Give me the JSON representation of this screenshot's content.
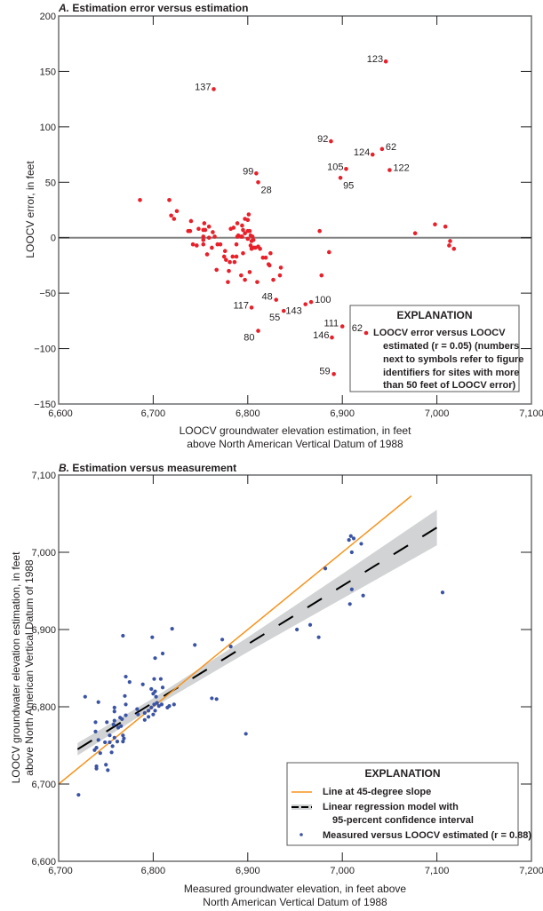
{
  "chart_data": [
    {
      "type": "scatter",
      "panel_letter": "A.",
      "title": "Estimation error versus estimation",
      "xlabel": [
        "LOOCV groundwater elevation estimation, in feet",
        "above North American Vertical Datum of 1988"
      ],
      "ylabel": "LOOCV  error, in feet",
      "xlim": [
        6600,
        7100
      ],
      "ylim": [
        -150,
        200
      ],
      "xticks": [
        6600,
        6700,
        6800,
        6900,
        7000,
        7100
      ],
      "xtick_labels": [
        "6,600",
        "6,700",
        "6,800",
        "6,900",
        "7,000",
        "7,100"
      ],
      "yticks": [
        -150,
        -100,
        -50,
        0,
        50,
        100,
        150,
        200
      ],
      "ytick_labels": [
        "−150",
        "−100",
        "−50",
        "0",
        "50",
        "100",
        "150",
        "200"
      ],
      "reference_line_y": 0,
      "grid": false,
      "colors": {
        "points": "#e8202a",
        "reference": "#808080"
      },
      "legend": {
        "placement": "bottom-right",
        "heading": "EXPLANATION",
        "sample_label": "62",
        "lines": [
          "LOOCV error versus LOOCV",
          "estimated (r = 0.05) (numbers",
          "next to symbols refer to figure",
          "identifiers for sites with more",
          "than 50 feet of LOOCV error)"
        ]
      },
      "points": [
        [
          6686,
          34
        ],
        [
          6717,
          34
        ],
        [
          6719,
          20
        ],
        [
          6722,
          17
        ],
        [
          6725,
          24
        ],
        [
          6740,
          15
        ],
        [
          6737,
          6
        ],
        [
          6739,
          6
        ],
        [
          6748,
          8
        ],
        [
          6754,
          13
        ],
        [
          6759,
          10
        ],
        [
          6753,
          7
        ],
        [
          6755,
          7
        ],
        [
          6763,
          5
        ],
        [
          6753,
          1
        ],
        [
          6759,
          0
        ],
        [
          6765,
          1
        ],
        [
          6753,
          -2
        ],
        [
          6742,
          -6
        ],
        [
          6746,
          -7
        ],
        [
          6753,
          -6
        ],
        [
          6762,
          -9
        ],
        [
          6768,
          -6
        ],
        [
          6771,
          -6
        ],
        [
          6757,
          -15
        ],
        [
          6776,
          -12
        ],
        [
          6775,
          -17
        ],
        [
          6777,
          -20
        ],
        [
          6781,
          -22
        ],
        [
          6784,
          -17
        ],
        [
          6788,
          -17
        ],
        [
          6786,
          -22
        ],
        [
          6767,
          -29
        ],
        [
          6780,
          -30
        ],
        [
          6779,
          -40
        ],
        [
          6788,
          -6
        ],
        [
          6795,
          -14
        ],
        [
          6793,
          -34
        ],
        [
          6797,
          -38
        ],
        [
          6802,
          -31
        ],
        [
          6810,
          -40
        ],
        [
          6782,
          8
        ],
        [
          6785,
          9
        ],
        [
          6789,
          13
        ],
        [
          6794,
          11
        ],
        [
          6797,
          17
        ],
        [
          6800,
          16
        ],
        [
          6801,
          21
        ],
        [
          6795,
          7
        ],
        [
          6800,
          6
        ],
        [
          6802,
          6
        ],
        [
          6790,
          2
        ],
        [
          6793,
          1
        ],
        [
          6797,
          4
        ],
        [
          6803,
          2
        ],
        [
          6805,
          1
        ],
        [
          6789,
          1
        ],
        [
          6794,
          1
        ],
        [
          6800,
          -1
        ],
        [
          6804,
          -3
        ],
        [
          6806,
          -2
        ],
        [
          6803,
          -7
        ],
        [
          6806,
          -9
        ],
        [
          6808,
          -9
        ],
        [
          6804,
          -10
        ],
        [
          6811,
          -8
        ],
        [
          6813,
          -10
        ],
        [
          6816,
          -18
        ],
        [
          6819,
          -18
        ],
        [
          6824,
          -14
        ],
        [
          6822,
          -24
        ],
        [
          6823,
          -25
        ],
        [
          6835,
          -27
        ],
        [
          6834,
          -34
        ],
        [
          6827,
          -38
        ],
        [
          6876,
          6
        ],
        [
          6886,
          -13
        ],
        [
          6878,
          -34
        ],
        [
          6977,
          4
        ],
        [
          6998,
          12
        ],
        [
          7009,
          10
        ],
        [
          7014,
          -3
        ],
        [
          7013,
          -7
        ],
        [
          7018,
          -10
        ]
      ],
      "labeled_points": [
        {
          "x": 6946,
          "y": 159,
          "label": "123",
          "side": "left"
        },
        {
          "x": 6764,
          "y": 134,
          "label": "137",
          "side": "left"
        },
        {
          "x": 6809,
          "y": 58,
          "label": "99",
          "side": "left"
        },
        {
          "x": 6811,
          "y": 50,
          "label": "28",
          "side": "below-right"
        },
        {
          "x": 6888,
          "y": 87,
          "label": "92",
          "side": "left"
        },
        {
          "x": 6932,
          "y": 75,
          "label": "124",
          "side": "left"
        },
        {
          "x": 6942,
          "y": 80,
          "label": "62",
          "side": "right"
        },
        {
          "x": 6950,
          "y": 61,
          "label": "122",
          "side": "right"
        },
        {
          "x": 6904,
          "y": 62,
          "label": "105",
          "side": "left"
        },
        {
          "x": 6898,
          "y": 54,
          "label": "95",
          "side": "below-right"
        },
        {
          "x": 6830,
          "y": -56,
          "label": "48",
          "side": "above-left"
        },
        {
          "x": 6804,
          "y": -63,
          "label": "117",
          "side": "left"
        },
        {
          "x": 6838,
          "y": -66,
          "label": "55",
          "side": "below-left"
        },
        {
          "x": 6811,
          "y": -84,
          "label": "80",
          "side": "below-left"
        },
        {
          "x": 6861,
          "y": -60,
          "label": "143",
          "side": "below-left"
        },
        {
          "x": 6867,
          "y": -58,
          "label": "100",
          "side": "right"
        },
        {
          "x": 6900,
          "y": -80,
          "label": "111",
          "side": "above-left"
        },
        {
          "x": 6889,
          "y": -90,
          "label": "146",
          "side": "left"
        },
        {
          "x": 6891,
          "y": -123,
          "label": "59",
          "side": "above-left"
        }
      ]
    },
    {
      "type": "scatter",
      "panel_letter": "B.",
      "title": "Estimation versus measurement",
      "xlabel": [
        "Measured groundwater elevation, in feet above",
        "North American Vertical Datum of 1988"
      ],
      "ylabel": [
        "LOOCV groundwater elevation estimation, in feet",
        "above North American Vertical Datum of 1988"
      ],
      "xlim": [
        6700,
        7200
      ],
      "ylim": [
        6600,
        7100
      ],
      "xticks": [
        6700,
        6800,
        6900,
        7000,
        7100,
        7200
      ],
      "xtick_labels": [
        "6,700",
        "6,800",
        "6,900",
        "7,000",
        "7,100",
        "7,200"
      ],
      "yticks": [
        6600,
        6700,
        6800,
        6900,
        7000,
        7100
      ],
      "ytick_labels": [
        "6,600",
        "6,700",
        "6,800",
        "6,900",
        "7,000",
        "7,100"
      ],
      "grid": false,
      "colors": {
        "points": "#3a53a4",
        "one_to_one": "#f7941d",
        "regression": "#000000",
        "band": "#d1d3d4"
      },
      "one_to_one_line": {
        "x": [
          6700,
          7073
        ],
        "y": [
          6700,
          7073
        ]
      },
      "regression_line": {
        "x": [
          6720,
          7100
        ],
        "y": [
          6745,
          7032
        ]
      },
      "confidence_band": {
        "x": [
          6720,
          6800,
          6900,
          7000,
          7100
        ],
        "lower": [
          6737,
          6799,
          6871,
          6940,
          7009
        ],
        "upper": [
          6753,
          6811,
          6890,
          6972,
          7055
        ]
      },
      "legend": {
        "placement": "bottom-right",
        "heading": "EXPLANATION",
        "items": [
          "Line at 45-degree slope",
          "Linear regression model with",
          "95-percent confidence interval",
          "Measured versus LOOCV estimated (r = 0.88)"
        ]
      },
      "points": [
        [
          6721,
          6686
        ],
        [
          6728,
          6813
        ],
        [
          6742,
          6806
        ],
        [
          6768,
          6892
        ],
        [
          6799,
          6890
        ],
        [
          6820,
          6901
        ],
        [
          6802,
          6863
        ],
        [
          6810,
          6869
        ],
        [
          6844,
          6880
        ],
        [
          6873,
          6887
        ],
        [
          6882,
          6878
        ],
        [
          6771,
          6839
        ],
        [
          6775,
          6832
        ],
        [
          6789,
          6829
        ],
        [
          6801,
          6836
        ],
        [
          6808,
          6836
        ],
        [
          6810,
          6825
        ],
        [
          6798,
          6823
        ],
        [
          6800,
          6817
        ],
        [
          6802,
          6820
        ],
        [
          6803,
          6813
        ],
        [
          6770,
          6814
        ],
        [
          6771,
          6803
        ],
        [
          6862,
          6811
        ],
        [
          6867,
          6810
        ],
        [
          6898,
          6765
        ],
        [
          6759,
          6799
        ],
        [
          6759,
          6794
        ],
        [
          6783,
          6797
        ],
        [
          6771,
          6789
        ],
        [
          6784,
          6790
        ],
        [
          6791,
          6792
        ],
        [
          6795,
          6795
        ],
        [
          6798,
          6799
        ],
        [
          6801,
          6803
        ],
        [
          6804,
          6805
        ],
        [
          6806,
          6801
        ],
        [
          6809,
          6803
        ],
        [
          6802,
          6795
        ],
        [
          6800,
          6790
        ],
        [
          6795,
          6787
        ],
        [
          6791,
          6783
        ],
        [
          6815,
          6799
        ],
        [
          6817,
          6801
        ],
        [
          6822,
          6803
        ],
        [
          6739,
          6780
        ],
        [
          6751,
          6780
        ],
        [
          6759,
          6782
        ],
        [
          6765,
          6786
        ],
        [
          6767,
          6784
        ],
        [
          6739,
          6768
        ],
        [
          6758,
          6777
        ],
        [
          6763,
          6773
        ],
        [
          6766,
          6775
        ],
        [
          6754,
          6763
        ],
        [
          6742,
          6757
        ],
        [
          6749,
          6754
        ],
        [
          6754,
          6754
        ],
        [
          6759,
          6760
        ],
        [
          6768,
          6763
        ],
        [
          6769,
          6759
        ],
        [
          6762,
          6755
        ],
        [
          6768,
          6755
        ],
        [
          6757,
          6749
        ],
        [
          6740,
          6747
        ],
        [
          6738,
          6744
        ],
        [
          6744,
          6740
        ],
        [
          6756,
          6741
        ],
        [
          6750,
          6725
        ],
        [
          6740,
          6723
        ],
        [
          6740,
          6720
        ],
        [
          6752,
          6718
        ],
        [
          7009,
          7021
        ],
        [
          7007,
          7016
        ],
        [
          7012,
          7018
        ],
        [
          7020,
          7011
        ],
        [
          7010,
          7000
        ],
        [
          6982,
          6979
        ],
        [
          7010,
          6952
        ],
        [
          7022,
          6944
        ],
        [
          7008,
          6933
        ],
        [
          7106,
          6948
        ],
        [
          6966,
          6906
        ],
        [
          6952,
          6900
        ],
        [
          6975,
          6890
        ]
      ]
    }
  ]
}
